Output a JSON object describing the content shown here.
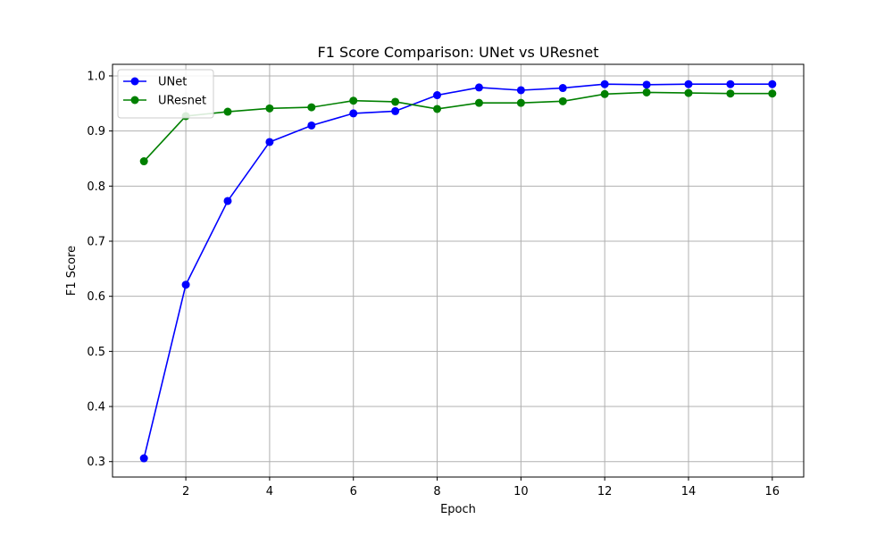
{
  "chart_data": {
    "type": "line",
    "title": "F1 Score Comparison: UNet vs UResnet",
    "xlabel": "Epoch",
    "ylabel": "F1 Score",
    "x": [
      1,
      2,
      3,
      4,
      5,
      6,
      7,
      8,
      9,
      10,
      11,
      12,
      13,
      14,
      15,
      16
    ],
    "xlim": [
      0.25,
      16.75
    ],
    "ylim": [
      0.272,
      1.021
    ],
    "xticks": [
      2,
      4,
      6,
      8,
      10,
      12,
      14,
      16
    ],
    "xtick_labels": [
      "2",
      "4",
      "6",
      "8",
      "10",
      "12",
      "14",
      "16"
    ],
    "yticks": [
      0.3,
      0.4,
      0.5,
      0.6,
      0.7,
      0.8,
      0.9,
      1.0
    ],
    "ytick_labels": [
      "0.3",
      "0.4",
      "0.5",
      "0.6",
      "0.7",
      "0.8",
      "0.9",
      "1.0"
    ],
    "grid": true,
    "legend_position": "top-left",
    "series": [
      {
        "name": "UNet",
        "color": "#0000ff",
        "values": [
          0.306,
          0.621,
          0.773,
          0.88,
          0.91,
          0.932,
          0.936,
          0.965,
          0.979,
          0.974,
          0.978,
          0.985,
          0.984,
          0.985,
          0.985,
          0.985
        ]
      },
      {
        "name": "UResnet",
        "color": "#008000",
        "values": [
          0.845,
          0.927,
          0.935,
          0.941,
          0.943,
          0.955,
          0.953,
          0.94,
          0.951,
          0.951,
          0.954,
          0.967,
          0.97,
          0.969,
          0.968,
          0.968
        ]
      }
    ]
  }
}
